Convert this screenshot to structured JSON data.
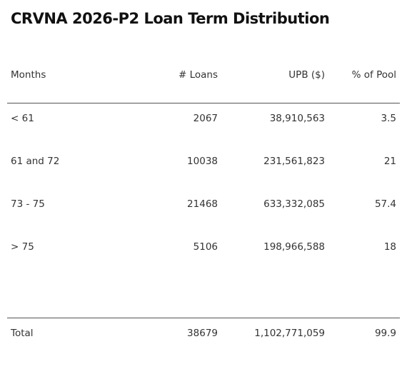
{
  "title": "CRVNA 2026-P2 Loan Term Distribution",
  "table": {
    "header": [
      "Months",
      "# Loans",
      "UPB ($)",
      "% of Pool"
    ],
    "rows": [
      [
        "< 61",
        "2067",
        "38,910,563",
        "3.5"
      ],
      [
        "61 and 72",
        "10038",
        "231,561,823",
        "21"
      ],
      [
        "73 - 75",
        "21468",
        "633,332,085",
        "57.4"
      ],
      [
        "> 75",
        "5106",
        "198,966,588",
        "18"
      ]
    ],
    "total": [
      "Total",
      "38679",
      "1,102,771,059",
      "99.9"
    ]
  }
}
